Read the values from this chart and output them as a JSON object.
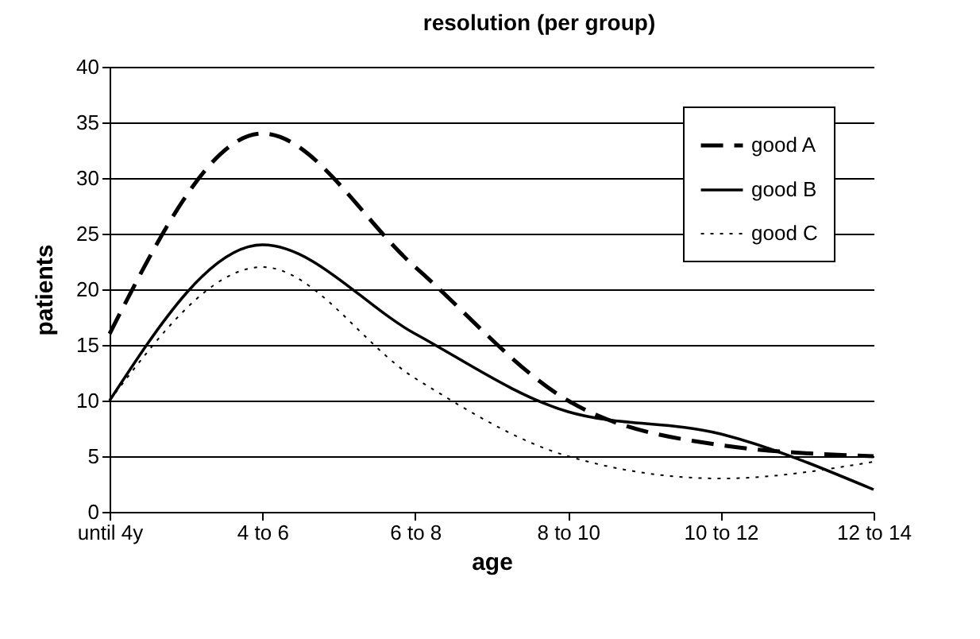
{
  "chart_data": {
    "type": "line",
    "title": "resolution (per group)",
    "xlabel": "age",
    "ylabel": "patients",
    "categories": [
      "until 4y",
      "4 to 6",
      "6 to 8",
      "8 to 10",
      "10 to 12",
      "12 to 14"
    ],
    "series": [
      {
        "name": "good A",
        "color": "#000000",
        "line_style": "dashed",
        "values": [
          16,
          34,
          22,
          10,
          6,
          5
        ]
      },
      {
        "name": "good B",
        "color": "#000000",
        "line_style": "solid",
        "values": [
          10,
          24,
          16,
          9,
          7,
          2
        ]
      },
      {
        "name": "good C",
        "color": "#000000",
        "line_style": "dotted",
        "values": [
          10,
          22,
          12,
          5,
          3,
          4.5
        ]
      }
    ],
    "ylim": [
      0,
      40
    ],
    "yticks": [
      0,
      5,
      10,
      15,
      20,
      25,
      30,
      35,
      40
    ],
    "grid": "y",
    "legend": "top right",
    "marker": "none"
  }
}
